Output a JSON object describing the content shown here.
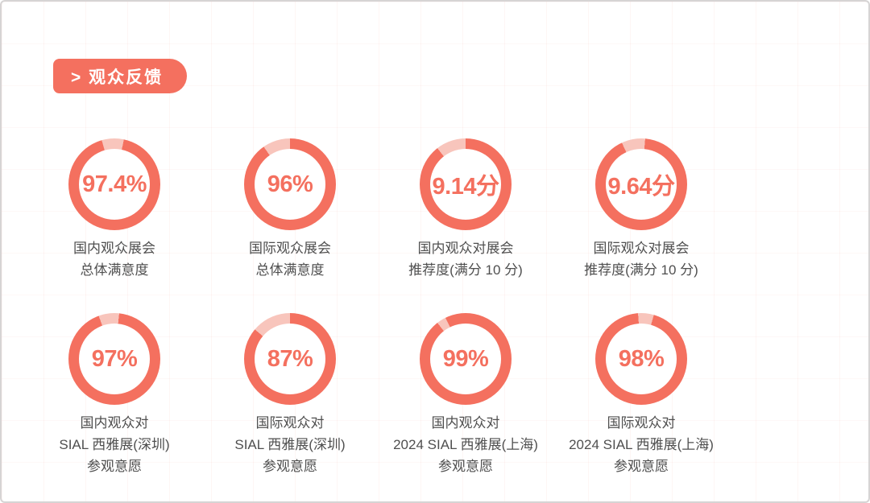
{
  "header": {
    "badge_label": "> 观众反馈"
  },
  "colors": {
    "ring": "#F4705F",
    "remainder": "#F8C5BC",
    "value_text": "#F4705F",
    "caption_text": "#4F4F4F",
    "badge_bg": "#F4705F",
    "badge_text": "#FFFFFF"
  },
  "chart_data": {
    "type": "pie",
    "subtype": "donut-ring-grid",
    "title": "观众反馈",
    "legend_position": "none",
    "grid": "faint-pink-watermark",
    "donuts": [
      {
        "value_label": "97.4%",
        "percent": 97.4,
        "caption_lines": [
          "国内观众展会",
          "总体满意度"
        ],
        "gap_start_deg": -16,
        "gap_span_deg": 28
      },
      {
        "value_label": "96%",
        "percent": 96,
        "caption_lines": [
          "国际观众展会",
          "总体满意度"
        ],
        "gap_start_deg": -35,
        "gap_span_deg": 35
      },
      {
        "value_label": "9.14分",
        "percent": 91.4,
        "caption_lines": [
          "国内观众对展会",
          "推荐度(满分 10 分)"
        ],
        "gap_start_deg": -38,
        "gap_span_deg": 38
      },
      {
        "value_label": "9.64分",
        "percent": 96.4,
        "caption_lines": [
          "国际观众对展会",
          "推荐度(满分 10 分)"
        ],
        "gap_start_deg": -25,
        "gap_span_deg": 30
      },
      {
        "value_label": "97%",
        "percent": 97,
        "caption_lines": [
          "国内观众对",
          "SIAL 西雅展(深圳)",
          "参观意愿"
        ],
        "gap_start_deg": -20,
        "gap_span_deg": 26
      },
      {
        "value_label": "87%",
        "percent": 87,
        "caption_lines": [
          "国际观众对",
          "SIAL 西雅展(深圳)",
          "参观意愿"
        ],
        "gap_start_deg": -50,
        "gap_span_deg": 50
      },
      {
        "value_label": "99%",
        "percent": 99,
        "caption_lines": [
          "国内观众对",
          "2024 SIAL 西雅展(上海)",
          "参观意愿"
        ],
        "gap_start_deg": -38,
        "gap_span_deg": 12
      },
      {
        "value_label": "98%",
        "percent": 98,
        "caption_lines": [
          "国际观众对",
          "2024 SIAL 西雅展(上海)",
          "参观意愿"
        ],
        "gap_start_deg": -4,
        "gap_span_deg": 20
      }
    ]
  }
}
